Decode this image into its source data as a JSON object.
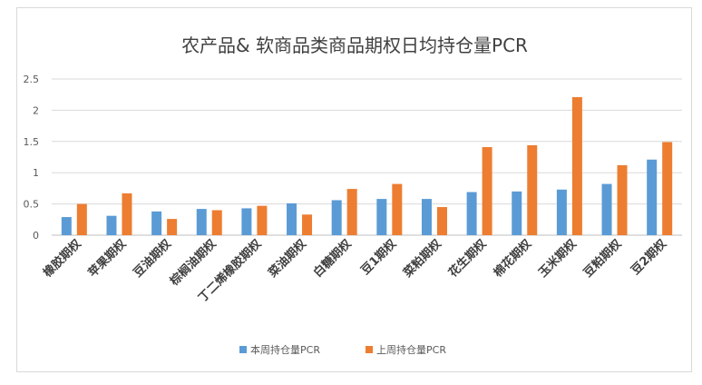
{
  "chart_data": {
    "type": "bar",
    "title": "农产品& 软商品类商品期权日均持仓量PCR",
    "categories": [
      "橡胶期权",
      "苹果期权",
      "豆油期权",
      "棕榈油期权",
      "丁二烯橡胶期权",
      "菜油期权",
      "白糖期权",
      "豆1期权",
      "菜粕期权",
      "花生期权",
      "棉花期权",
      "玉米期权",
      "豆粕期权",
      "豆2期权"
    ],
    "series": [
      {
        "name": "本周持仓量PCR",
        "color": "#5b9bd5",
        "values": [
          0.29,
          0.31,
          0.38,
          0.42,
          0.43,
          0.51,
          0.56,
          0.58,
          0.58,
          0.69,
          0.7,
          0.73,
          0.82,
          1.21
        ]
      },
      {
        "name": "上周持仓量PCR",
        "color": "#ed7d31",
        "values": [
          0.5,
          0.67,
          0.26,
          0.4,
          0.47,
          0.33,
          0.74,
          0.82,
          0.45,
          1.41,
          1.44,
          2.21,
          1.12,
          1.49
        ]
      }
    ],
    "ylim": [
      0,
      2.5
    ],
    "yticks": [
      "0",
      "0.5",
      "1",
      "1.5",
      "2",
      "2.5"
    ],
    "grid": true,
    "legend": "bottom"
  }
}
